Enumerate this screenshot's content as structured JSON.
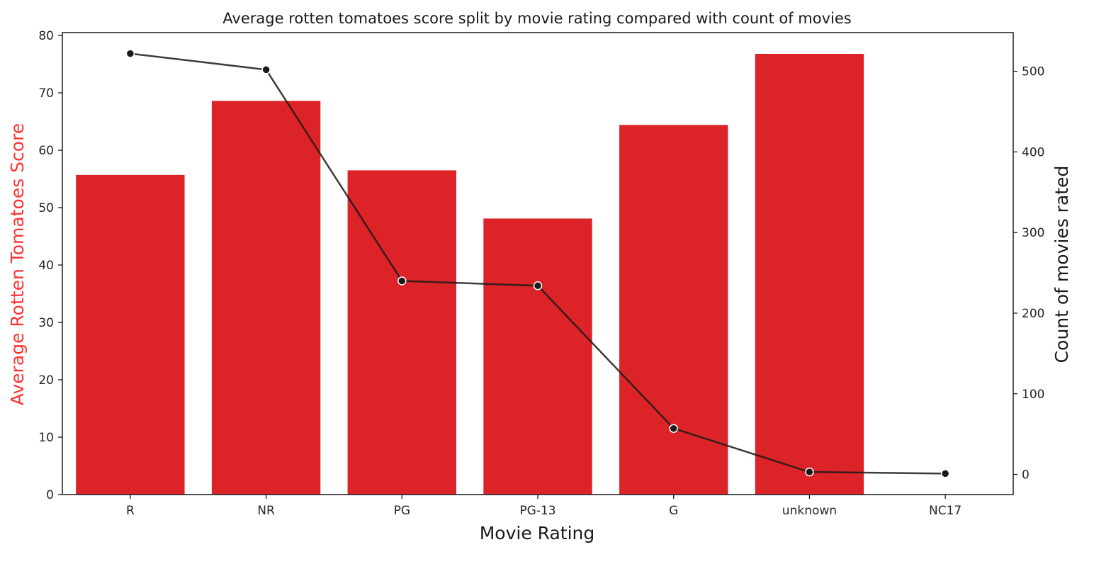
{
  "chart_data": {
    "type": "bar",
    "title": "Average rotten tomatoes score split by movie rating compared with count of movies",
    "xlabel": "Movie Rating",
    "categories": [
      "R",
      "NR",
      "PG",
      "PG-13",
      "G",
      "unknown",
      "NC17"
    ],
    "left_axis": {
      "label": "Average Rotten Tomatoes Score",
      "label_color": "#ff3333",
      "ylim": [
        0,
        80.5
      ],
      "ticks": [
        0,
        10,
        20,
        30,
        40,
        50,
        60,
        70,
        80
      ]
    },
    "right_axis": {
      "label": "Count of movies rated",
      "label_color": "#1a1a1a",
      "ylim": [
        -25,
        548
      ],
      "ticks": [
        0,
        100,
        200,
        300,
        400,
        500
      ]
    },
    "series": [
      {
        "type": "bar",
        "axis": "left",
        "color": "#dc2328",
        "values": [
          55.7,
          68.6,
          56.5,
          48.1,
          64.4,
          76.8,
          null
        ]
      },
      {
        "type": "line",
        "axis": "right",
        "color": "#1a1a1a",
        "marker": "circle",
        "values": [
          522,
          502,
          240,
          234,
          57,
          3,
          1
        ]
      }
    ],
    "grid": false,
    "legend": "none"
  }
}
